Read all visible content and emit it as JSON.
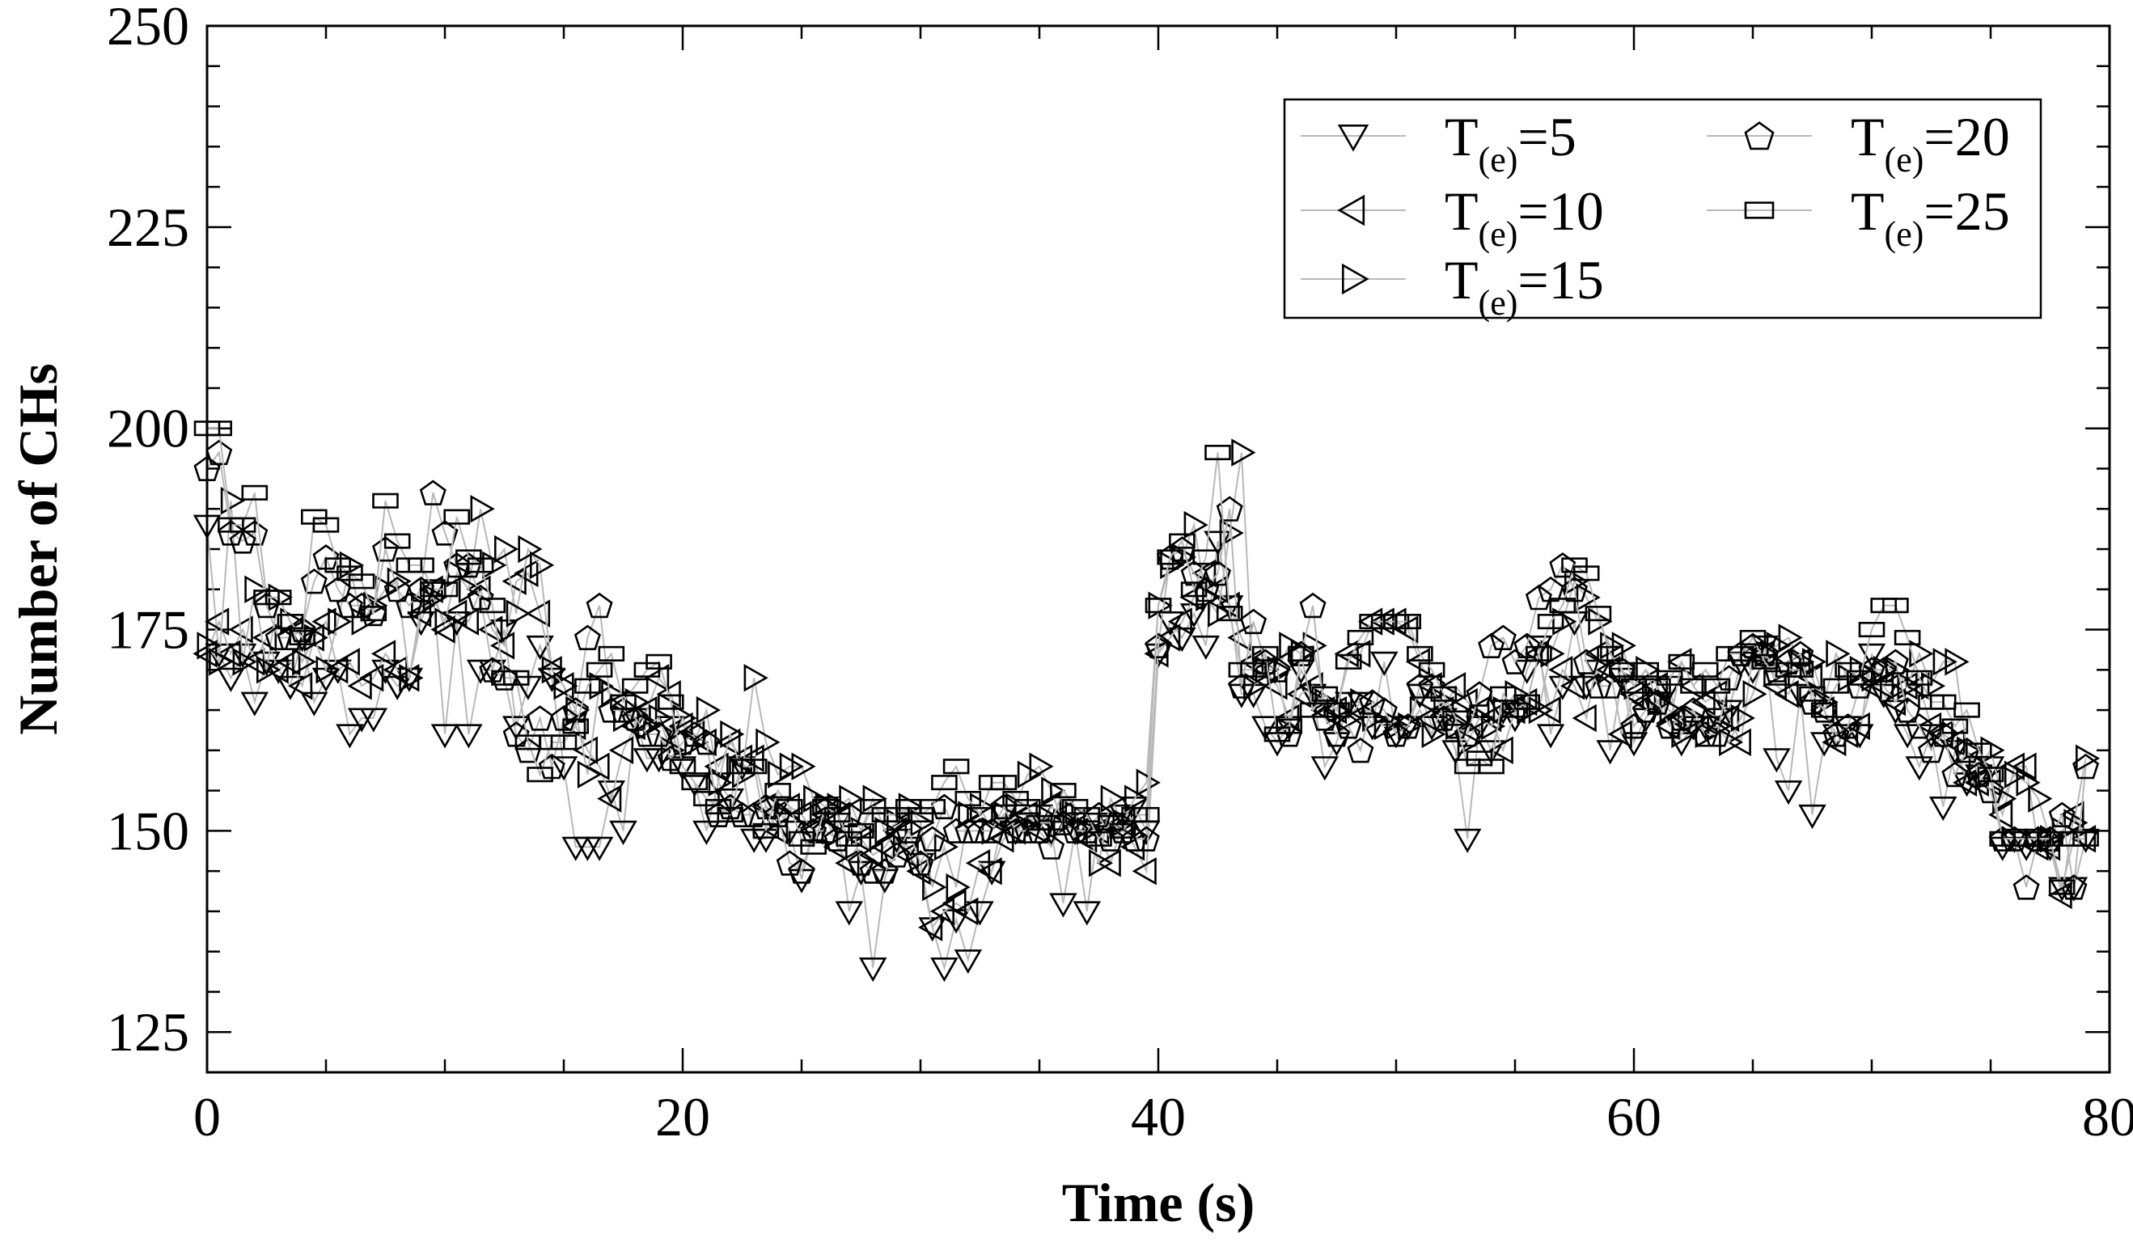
{
  "chart_data": {
    "type": "scatter",
    "title": "",
    "xlabel": "Time (s)",
    "ylabel": "Number of CHs",
    "xlim": [
      0,
      80
    ],
    "ylim": [
      120,
      250
    ],
    "xticks": [
      0,
      20,
      40,
      60,
      80
    ],
    "yticks": [
      125,
      150,
      175,
      200,
      225,
      250
    ],
    "xtick_labels": [
      "0",
      "20",
      "40",
      "60",
      "80"
    ],
    "ytick_labels": [
      "125",
      "150",
      "175",
      "200",
      "225",
      "250"
    ],
    "legend_position": "top-right",
    "x": [
      0,
      0.5,
      1,
      1.5,
      2,
      2.5,
      3,
      3.5,
      4,
      4.5,
      5,
      5.5,
      6,
      6.5,
      7,
      7.5,
      8,
      8.5,
      9,
      9.5,
      10,
      10.5,
      11,
      11.5,
      12,
      12.5,
      13,
      13.5,
      14,
      14.5,
      15,
      15.5,
      16,
      16.5,
      17,
      17.5,
      18,
      18.5,
      19,
      19.5,
      20,
      20.5,
      21,
      21.5,
      22,
      22.5,
      23,
      23.5,
      24,
      24.5,
      25,
      25.5,
      26,
      26.5,
      27,
      27.5,
      28,
      28.5,
      29,
      29.5,
      30,
      30.5,
      31,
      31.5,
      32,
      32.5,
      33,
      33.5,
      34,
      34.5,
      35,
      35.5,
      36,
      36.5,
      37,
      37.5,
      38,
      38.5,
      39,
      39.5,
      40,
      40.5,
      41,
      41.5,
      42,
      42.5,
      43,
      43.5,
      44,
      44.5,
      45,
      45.5,
      46,
      46.5,
      47,
      47.5,
      48,
      48.5,
      49,
      49.5,
      50,
      50.5,
      51,
      51.5,
      52,
      52.5,
      53,
      53.5,
      54,
      54.5,
      55,
      55.5,
      56,
      56.5,
      57,
      57.5,
      58,
      58.5,
      59,
      59.5,
      60,
      60.5,
      61,
      61.5,
      62,
      62.5,
      63,
      63.5,
      64,
      64.5,
      65,
      65.5,
      66,
      66.5,
      67,
      67.5,
      68,
      68.5,
      69,
      69.5,
      70,
      70.5,
      71,
      71.5,
      72,
      72.5,
      73,
      73.5,
      74,
      74.5,
      75,
      75.5,
      76,
      76.5,
      77,
      77.5,
      78,
      78.5,
      79
    ],
    "series": [
      {
        "name": "T(e)=5",
        "marker": "triangle-down",
        "values": [
          188,
          172,
          169,
          172,
          166,
          171,
          170,
          168,
          174,
          166,
          169,
          170,
          162,
          164,
          164,
          170,
          168,
          169,
          176,
          180,
          162,
          176,
          162,
          170,
          170,
          175,
          163,
          168,
          173,
          169,
          158,
          148,
          148,
          148,
          155,
          150,
          164,
          159,
          159,
          163,
          158,
          156,
          150,
          156,
          154,
          158,
          149,
          149,
          153,
          150,
          144,
          150,
          153,
          151,
          140,
          145,
          133,
          144,
          149,
          148,
          146,
          138,
          133,
          139,
          134,
          140,
          145,
          152,
          150,
          151,
          152,
          150,
          141,
          150,
          140,
          151,
          151,
          152,
          153,
          150,
          172,
          176,
          174,
          177,
          173,
          186,
          178,
          167,
          167,
          163,
          161,
          163,
          170,
          167,
          158,
          161,
          166,
          166,
          163,
          171,
          162,
          163,
          167,
          163,
          164,
          160,
          149,
          163,
          160,
          165,
          164,
          170,
          173,
          162,
          168,
          176,
          168,
          170,
          160,
          169,
          161,
          164,
          166,
          168,
          161,
          163,
          163,
          164,
          165,
          171,
          170,
          173,
          159,
          155,
          167,
          152,
          161,
          162,
          163,
          162,
          172,
          167,
          165,
          162,
          158,
          162,
          153,
          160,
          156,
          157,
          158,
          148,
          149,
          148,
          149,
          148,
          143,
          143,
          149
        ]
      },
      {
        "name": "T(e)=10",
        "marker": "triangle-left",
        "values": [
          172,
          176,
          172,
          175,
          171,
          174,
          170,
          171,
          168,
          174,
          176,
          170,
          171,
          168,
          169,
          172,
          170,
          169,
          177,
          180,
          175,
          177,
          176,
          180,
          175,
          173,
          181,
          182,
          177,
          170,
          168,
          163,
          160,
          158,
          154,
          160,
          163,
          165,
          169,
          167,
          163,
          162,
          161,
          158,
          161,
          159,
          159,
          153,
          150,
          153,
          152,
          150,
          152,
          148,
          146,
          149,
          147,
          148,
          150,
          147,
          145,
          138,
          140,
          141,
          140,
          146,
          145,
          149,
          150,
          152,
          150,
          153,
          152,
          151,
          149,
          150,
          146,
          151,
          148,
          145,
          172,
          174,
          176,
          179,
          182,
          180,
          178,
          174,
          171,
          170,
          168,
          164,
          167,
          168,
          165,
          165,
          172,
          172,
          176,
          176,
          176,
          175,
          171,
          168,
          165,
          168,
          166,
          165,
          164,
          160,
          165,
          166,
          172,
          165,
          170,
          168,
          164,
          172,
          170,
          162,
          167,
          166,
          168,
          163,
          171,
          168,
          166,
          167,
          164,
          161,
          172,
          172,
          168,
          167,
          171,
          169,
          165,
          161,
          162,
          163,
          168,
          168,
          166,
          168,
          168,
          163,
          162,
          161,
          156,
          156,
          156,
          152,
          158,
          158,
          148,
          148,
          142,
          152,
          149
        ]
      },
      {
        "name": "T(e)=15",
        "marker": "triangle-right",
        "values": [
          173,
          171,
          191,
          171,
          180,
          170,
          179,
          176,
          171,
          174,
          170,
          176,
          183,
          176,
          178,
          180,
          181,
          169,
          178,
          179,
          176,
          182,
          180,
          190,
          183,
          185,
          177,
          185,
          183,
          170,
          168,
          165,
          157,
          168,
          167,
          164,
          166,
          163,
          164,
          160,
          164,
          161,
          165,
          156,
          162,
          157,
          169,
          161,
          157,
          158,
          158,
          154,
          153,
          153,
          154,
          150,
          154,
          150,
          151,
          153,
          151,
          143,
          148,
          143,
          152,
          153,
          150,
          152,
          153,
          157,
          158,
          155,
          151,
          152,
          150,
          146,
          154,
          151,
          154,
          156,
          178,
          183,
          184,
          188,
          179,
          177,
          187,
          197,
          168,
          170,
          170,
          173,
          172,
          173,
          166,
          165,
          164,
          166,
          164,
          163,
          163,
          163,
          165,
          162,
          166,
          163,
          161,
          164,
          163,
          165,
          167,
          165,
          165,
          172,
          176,
          181,
          179,
          176,
          173,
          173,
          168,
          170,
          166,
          165,
          162,
          164,
          162,
          163,
          161,
          164,
          167,
          172,
          173,
          174,
          171,
          171,
          166,
          172,
          169,
          170,
          169,
          170,
          170,
          168,
          172,
          168,
          171,
          171,
          160,
          158,
          160,
          154,
          157,
          156,
          154,
          149,
          150,
          151,
          159
        ]
      },
      {
        "name": "T(e)=20",
        "marker": "pentagon",
        "values": [
          195,
          197,
          187,
          186,
          187,
          178,
          174,
          174,
          175,
          181,
          184,
          180,
          178,
          178,
          177,
          185,
          180,
          178,
          180,
          192,
          187,
          183,
          183,
          179,
          170,
          169,
          162,
          160,
          164,
          158,
          164,
          165,
          174,
          178,
          165,
          165,
          164,
          162,
          162,
          159,
          161,
          162,
          161,
          152,
          153,
          152,
          152,
          153,
          152,
          146,
          145,
          150,
          150,
          149,
          152,
          146,
          145,
          145,
          147,
          150,
          146,
          149,
          153,
          150,
          150,
          150,
          150,
          153,
          150,
          150,
          150,
          148,
          151,
          150,
          150,
          152,
          149,
          150,
          149,
          149,
          173,
          184,
          185,
          182,
          180,
          182,
          190,
          168,
          176,
          171,
          170,
          162,
          172,
          178,
          164,
          162,
          163,
          160,
          166,
          165,
          162,
          163,
          168,
          168,
          164,
          163,
          162,
          167,
          173,
          174,
          171,
          173,
          179,
          180,
          183,
          180,
          171,
          168,
          168,
          170,
          163,
          165,
          166,
          163,
          164,
          165,
          162,
          162,
          169,
          172,
          173,
          172,
          170,
          171,
          172,
          166,
          165,
          162,
          163,
          168,
          170,
          170,
          171,
          165,
          163,
          160,
          162,
          157,
          160,
          157,
          155,
          149,
          149,
          143,
          149,
          149,
          152,
          143,
          158
        ]
      },
      {
        "name": "T(e)=25",
        "marker": "rectangle",
        "values": [
          200,
          200,
          188,
          188,
          192,
          179,
          179,
          176,
          174,
          189,
          188,
          183,
          182,
          181,
          177,
          191,
          186,
          183,
          183,
          180,
          180,
          189,
          184,
          183,
          178,
          169,
          169,
          161,
          157,
          161,
          161,
          163,
          168,
          170,
          172,
          166,
          168,
          170,
          171,
          166,
          158,
          156,
          154,
          153,
          152,
          158,
          158,
          150,
          155,
          153,
          149,
          148,
          153,
          152,
          149,
          150,
          153,
          152,
          152,
          153,
          152,
          153,
          156,
          158,
          154,
          152,
          156,
          156,
          154,
          153,
          151,
          151,
          155,
          153,
          152,
          149,
          151,
          150,
          152,
          152,
          178,
          184,
          186,
          180,
          184,
          197,
          177,
          170,
          170,
          172,
          162,
          163,
          172,
          165,
          167,
          165,
          171,
          174,
          176,
          176,
          176,
          176,
          172,
          170,
          167,
          164,
          158,
          159,
          158,
          167,
          165,
          166,
          172,
          176,
          178,
          183,
          182,
          177,
          172,
          170,
          168,
          170,
          168,
          169,
          171,
          168,
          170,
          168,
          172,
          172,
          174,
          171,
          169,
          170,
          170,
          167,
          165,
          168,
          170,
          169,
          175,
          178,
          178,
          174,
          169,
          166,
          166,
          163,
          165,
          160,
          157,
          149,
          149,
          149,
          149,
          149,
          143,
          149,
          149
        ]
      }
    ]
  }
}
